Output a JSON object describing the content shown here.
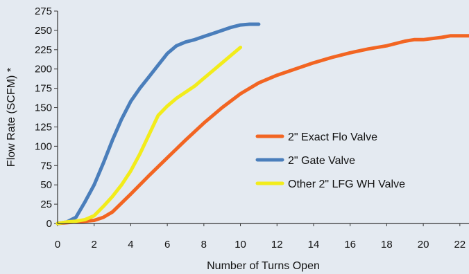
{
  "chart_data": {
    "type": "line",
    "title": "",
    "xlabel": "Number of Turns Open",
    "ylabel": "Flow Rate (SCFM) *",
    "xlim": [
      0,
      22.5
    ],
    "ylim": [
      0,
      275
    ],
    "xticks": [
      0,
      2,
      4,
      6,
      8,
      10,
      12,
      14,
      16,
      18,
      20,
      22
    ],
    "yticks": [
      0,
      25,
      50,
      75,
      100,
      125,
      150,
      175,
      200,
      225,
      250,
      275
    ],
    "grid": false,
    "legend_position": "right-center",
    "series": [
      {
        "name": "2\" Exact Flo Valve",
        "color": "#f26522",
        "x": [
          0,
          1,
          1.5,
          2,
          2.5,
          3,
          4,
          5,
          6,
          7,
          8,
          9,
          10,
          11,
          12,
          13,
          14,
          15,
          16,
          17,
          18,
          19,
          19.5,
          20,
          21,
          21.5,
          22,
          22.5
        ],
        "y": [
          0,
          2,
          3,
          4,
          8,
          15,
          38,
          62,
          85,
          108,
          130,
          150,
          168,
          182,
          192,
          200,
          208,
          215,
          221,
          226,
          230,
          236,
          238,
          238,
          241,
          243,
          243,
          243
        ]
      },
      {
        "name": "2\" Gate Valve",
        "color": "#4a7ebb",
        "x": [
          0,
          0.5,
          1,
          1.5,
          2,
          2.5,
          3,
          3.5,
          4,
          4.5,
          5,
          5.5,
          6,
          6.5,
          7,
          7.5,
          8,
          8.5,
          9,
          9.5,
          10,
          10.5,
          11
        ],
        "y": [
          0,
          2,
          8,
          28,
          50,
          78,
          108,
          135,
          158,
          175,
          190,
          205,
          220,
          230,
          235,
          238,
          242,
          246,
          250,
          254,
          257,
          258,
          258
        ]
      },
      {
        "name": "Other 2\" LFG WH Valve",
        "color": "#f2ec1b",
        "x": [
          0,
          0.5,
          1,
          1.5,
          2,
          2.5,
          3,
          3.5,
          4,
          4.5,
          5,
          5.5,
          6,
          6.5,
          7,
          7.5,
          8,
          8.5,
          9,
          9.5,
          10
        ],
        "y": [
          0,
          2,
          3,
          5,
          10,
          22,
          35,
          50,
          68,
          90,
          115,
          140,
          152,
          162,
          170,
          178,
          188,
          198,
          208,
          218,
          228
        ]
      }
    ]
  }
}
